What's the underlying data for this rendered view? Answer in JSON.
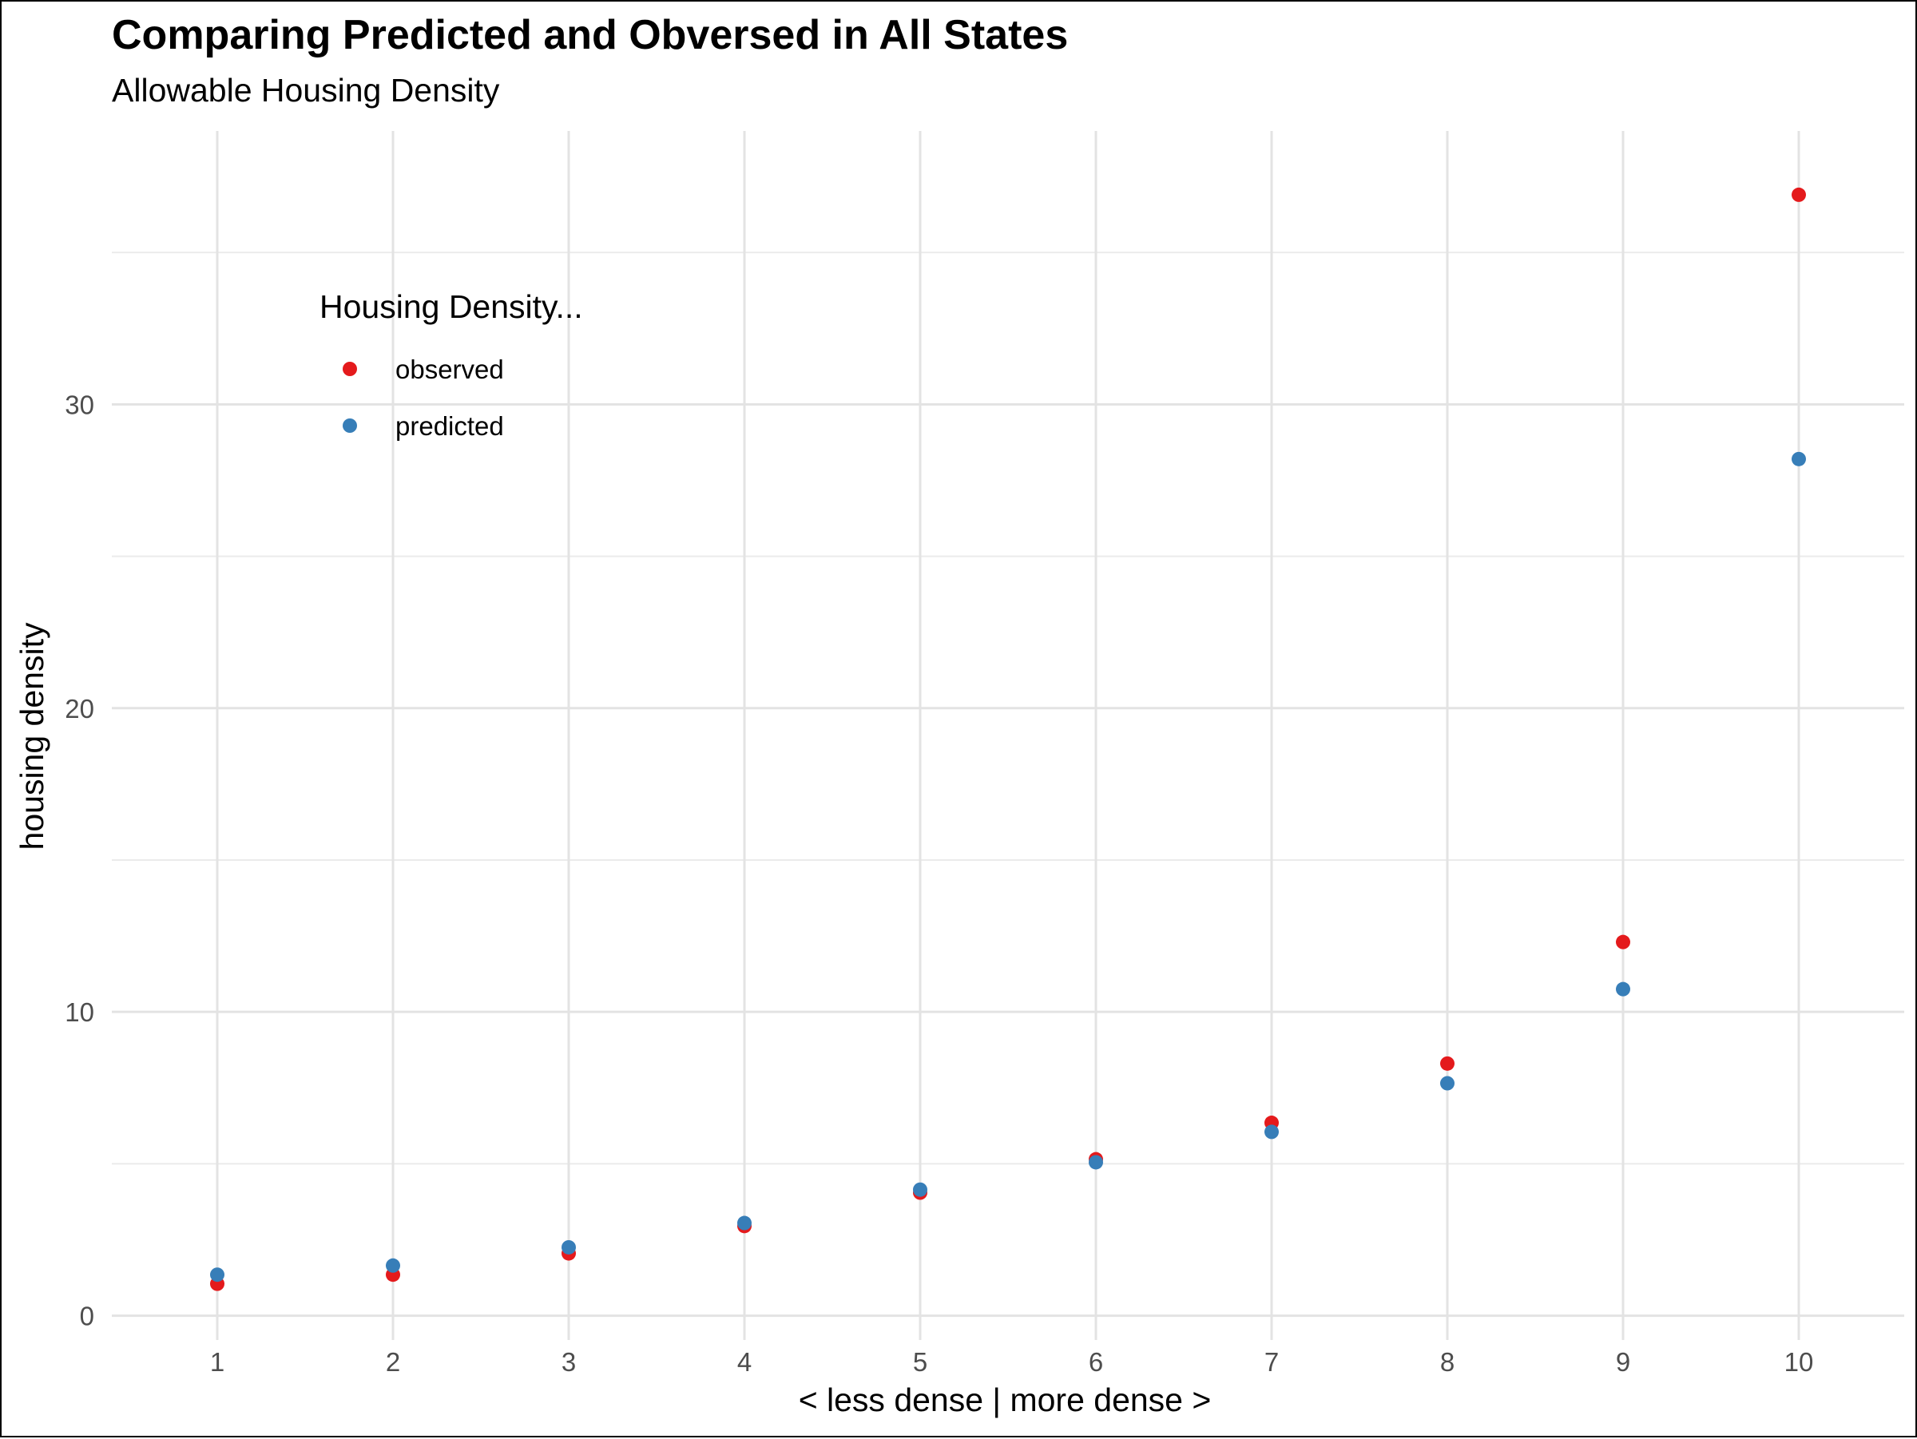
{
  "chart_data": {
    "type": "scatter",
    "title": "Comparing Predicted and Obversed in All States",
    "subtitle": "Allowable Housing Density",
    "xlabel": "< less dense | more dense >",
    "ylabel": "housing density",
    "x": [
      1,
      2,
      3,
      4,
      5,
      6,
      7,
      8,
      9,
      10
    ],
    "x_ticks": [
      "1",
      "2",
      "3",
      "4",
      "5",
      "6",
      "7",
      "8",
      "9",
      "10"
    ],
    "y_ticks": [
      "0",
      "10",
      "20",
      "30"
    ],
    "xlim": [
      0.4,
      10.6
    ],
    "ylim": [
      -0.8,
      39
    ],
    "grid": true,
    "legend": {
      "title": "Housing Density...",
      "placement": "inside top-left"
    },
    "series": [
      {
        "name": "observed",
        "color": "#E41A1C",
        "values": [
          1.05,
          1.35,
          2.05,
          2.95,
          4.05,
          5.15,
          6.35,
          8.3,
          12.3,
          36.9
        ]
      },
      {
        "name": "predicted",
        "color": "#377EB8",
        "values": [
          1.35,
          1.65,
          2.25,
          3.05,
          4.15,
          5.05,
          6.05,
          7.65,
          10.75,
          28.2
        ]
      }
    ]
  }
}
